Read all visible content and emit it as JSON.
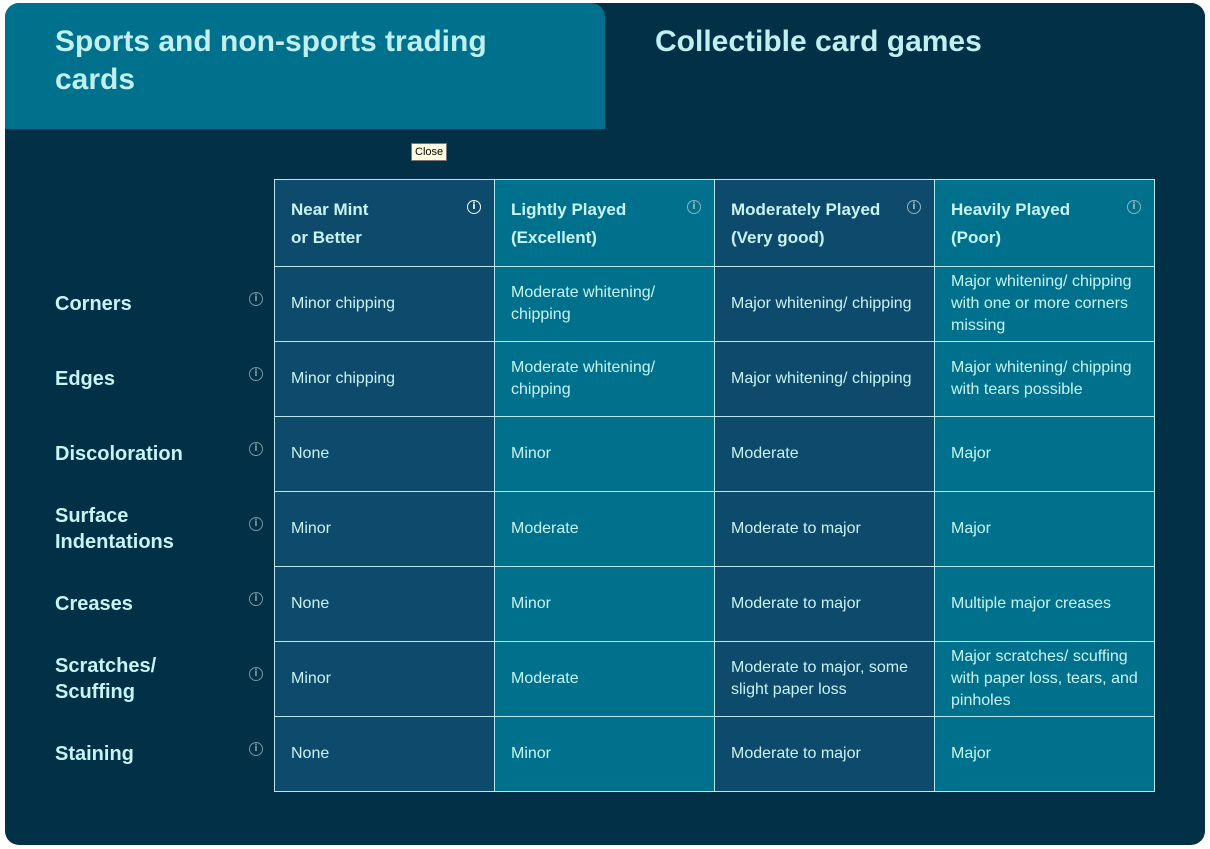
{
  "tabs": [
    {
      "label": "Sports and non-sports trading cards",
      "active": true
    },
    {
      "label": "Collectible card games",
      "active": false
    }
  ],
  "tooltip": "Close",
  "columns": [
    {
      "line1": "Near Mint",
      "line2": "or Better"
    },
    {
      "line1": "Lightly Played",
      "line2": "(Excellent)"
    },
    {
      "line1": "Moderately Played",
      "line2": "(Very good)"
    },
    {
      "line1": "Heavily Played",
      "line2": "(Poor)"
    }
  ],
  "rows": [
    {
      "label": "Corners",
      "cells": [
        "Minor chipping",
        "Moderate whitening/ chipping",
        "Major whitening/ chipping",
        "Major whitening/ chipping with one or more corners missing"
      ]
    },
    {
      "label": "Edges",
      "cells": [
        "Minor chipping",
        "Moderate whitening/ chipping",
        "Major whitening/ chipping",
        "Major whitening/ chipping with tears possible"
      ]
    },
    {
      "label": "Discoloration",
      "cells": [
        "None",
        "Minor",
        "Moderate",
        "Major"
      ]
    },
    {
      "label": "Surface Indentations",
      "cells": [
        "Minor",
        "Moderate",
        "Moderate to major",
        "Major"
      ]
    },
    {
      "label": "Creases",
      "cells": [
        "None",
        "Minor",
        "Moderate to major",
        "Multiple major creases"
      ]
    },
    {
      "label": "Scratches/ Scuffing",
      "cells": [
        "Minor",
        "Moderate",
        "Moderate to major, some slight paper loss",
        "Major scratches/ scuffing with paper loss, tears, and pinholes"
      ]
    },
    {
      "label": "Staining",
      "cells": [
        "None",
        "Minor",
        "Moderate to major",
        "Major"
      ]
    }
  ],
  "colors": {
    "background": "#013047",
    "active_tab": "#00718d",
    "column_dark": "#0e4a6b",
    "column_light": "#00718d",
    "text": "#c8f3f3"
  }
}
